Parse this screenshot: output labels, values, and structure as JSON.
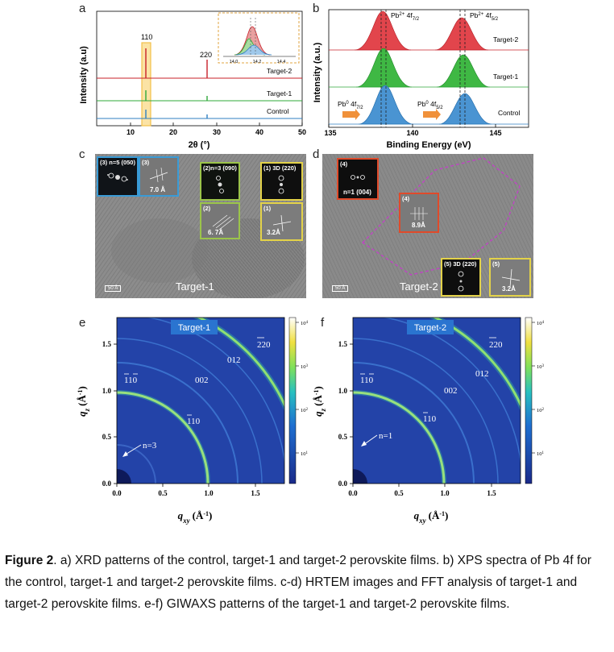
{
  "panel_labels": [
    "a",
    "b",
    "c",
    "d",
    "e",
    "f"
  ],
  "panel_a": {
    "ylabel": "Intensity (a.u)",
    "xlabel": "2θ (°)",
    "xticks": [
      "10",
      "20",
      "30",
      "40",
      "50"
    ],
    "series": [
      "Target-2",
      "Target-1",
      "Control"
    ],
    "peak_labels": [
      "110",
      "220"
    ],
    "inset_ticks": [
      "14.0",
      "14.2",
      "14.4"
    ]
  },
  "panel_b": {
    "ylabel": "Intensity (a.u.)",
    "xlabel": "Binding Energy (eV)",
    "xticks": [
      "135",
      "140",
      "145"
    ],
    "series": [
      "Target-2",
      "Target-1",
      "Control"
    ],
    "peaks": {
      "pb2_72": {
        "pre": "Pb",
        "sup": "2+",
        "mid": " 4f",
        "sub": "7/2"
      },
      "pb2_52": {
        "pre": "Pb",
        "sup": "2+",
        "mid": " 4f",
        "sub": "5/2"
      },
      "pb0_72": {
        "pre": "Pb",
        "sup": "0",
        "mid": " 4f",
        "sub": "7/2"
      },
      "pb0_52": {
        "pre": "Pb",
        "sup": "0",
        "mid": " 4f",
        "sub": "5/2"
      }
    }
  },
  "panel_c": {
    "sample": "Target-1",
    "scale": "50 Å",
    "insets": [
      {
        "label": "(3) n=5 (050)"
      },
      {
        "label": "(3)",
        "value": "7.0 Å"
      },
      {
        "label": "(2)n=3 (090)"
      },
      {
        "label": "(2)",
        "value": "6. 7Å"
      },
      {
        "label": "(1)  3D (220)"
      },
      {
        "label": "(1)",
        "value": "3.2Å"
      }
    ]
  },
  "panel_d": {
    "sample": "Target-2",
    "scale": "50 Å",
    "insets": [
      {
        "label": "(4)",
        "value": "n=1 (004)"
      },
      {
        "label": "(4)",
        "value": "8.9Å"
      },
      {
        "label": "(5)  3D (220)"
      },
      {
        "label": "(5)",
        "value": "3.2Å"
      }
    ]
  },
  "panel_e": {
    "title": "Target-1",
    "n_label": "n=3",
    "xlabel_main": "q",
    "xlabel_sub": "xy",
    "xlabel_unit": "(Å",
    "ylabel_main": "q",
    "ylabel_sub": "z",
    "ylabel_unit": "(Å",
    "xticks": [
      "0.0",
      "0.5",
      "1.0",
      "1.5"
    ],
    "yticks": [
      "0.0",
      "0.5",
      "1.0",
      "1.5"
    ],
    "cbar_ticks": [
      "1",
      "2",
      "3",
      "4"
    ],
    "ring_labels": [
      "220",
      "012",
      "002",
      "110",
      "110"
    ]
  },
  "panel_f": {
    "title": "Target-2",
    "n_label": "n=1",
    "xticks": [
      "0.0",
      "0.5",
      "1.0",
      "1.5"
    ],
    "yticks": [
      "0.0",
      "0.5",
      "1.0",
      "1.5"
    ],
    "cbar_ticks": [
      "1",
      "2",
      "3",
      "4"
    ],
    "ring_labels": [
      "220",
      "012",
      "002",
      "110",
      "110"
    ]
  },
  "caption": {
    "bold": "Figure 2",
    "text": ". a) XRD patterns of the control, target-1 and target-2 perovskite films. b) XPS spectra of Pb 4f for the control, target-1 and target-2 perovskite films. c-d) HRTEM images and FFT analysis of target-1 and target-2 perovskite films. e-f) GIWAXS patterns of the target-1 and target-2 perovskite films."
  },
  "colors": {
    "control": "#2f7fc1",
    "target1": "#2fa83a",
    "target2": "#c8202a",
    "highlight": "#f2c04a",
    "giwaxs_bg": "#1f3fa0"
  }
}
